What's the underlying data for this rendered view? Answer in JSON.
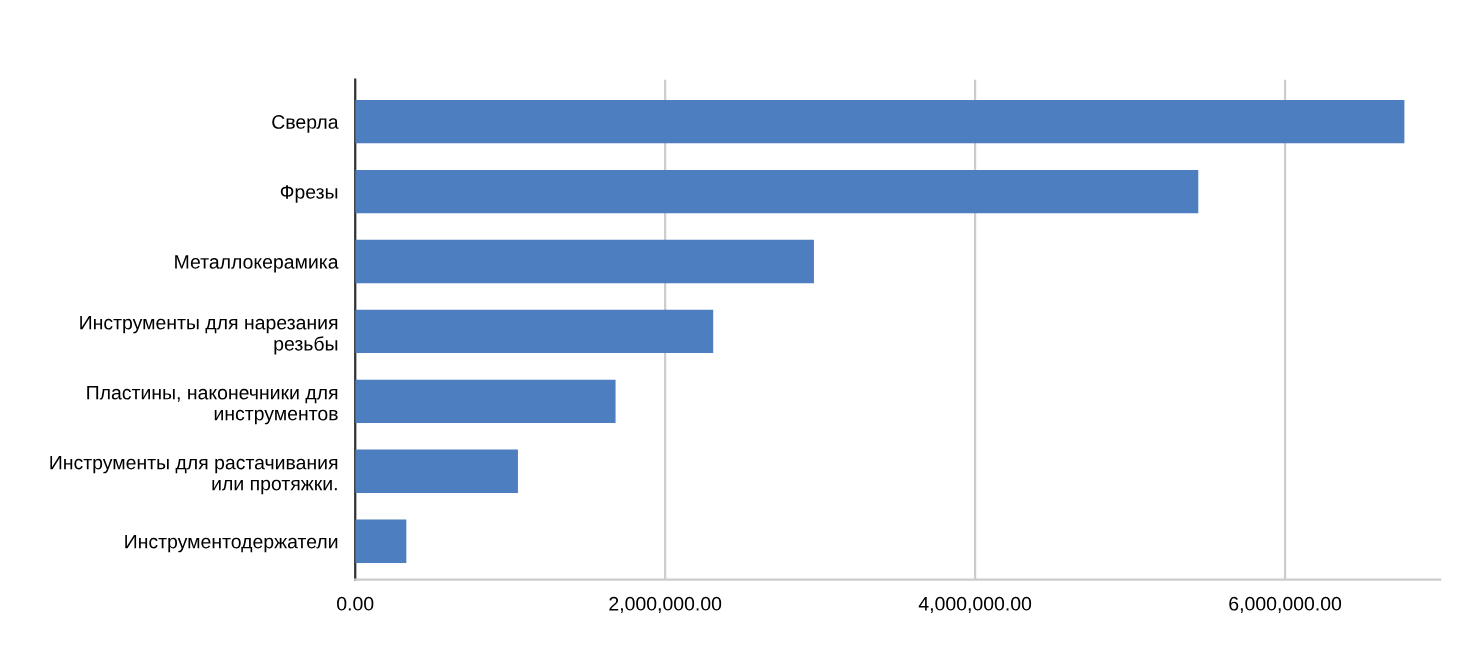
{
  "chart_data": {
    "type": "bar",
    "orientation": "horizontal",
    "categories": [
      "Сверла",
      "Фрезы",
      "Металлокерамика",
      "Инструменты для нарезания\nрезьбы",
      "Пластины, наконечники для\nинструментов",
      "Инструменты для растачивания\nили протяжки.",
      "Инструментодержатели"
    ],
    "values": [
      6770000,
      5440000,
      2960000,
      2310000,
      1680000,
      1050000,
      330000
    ],
    "color": "#4d7ebf",
    "xlim": [
      0,
      7000000
    ],
    "xticks": [
      {
        "value": 0,
        "label": "0.00"
      },
      {
        "value": 2000000,
        "label": "2,000,000.00"
      },
      {
        "value": 4000000,
        "label": "4,000,000.00"
      },
      {
        "value": 6000000,
        "label": "6,000,000.00"
      }
    ],
    "grid": "x",
    "legend": false
  }
}
